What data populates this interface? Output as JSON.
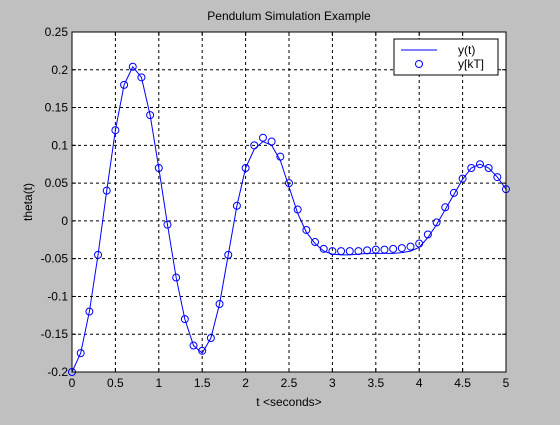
{
  "window": {
    "background": "#c0c0c0"
  },
  "chart_data": {
    "type": "line",
    "title": "Pendulum Simulation Example",
    "xlabel": "t <seconds>",
    "ylabel": "theta(t)",
    "xlim": [
      0,
      5
    ],
    "ylim": [
      -0.2,
      0.25
    ],
    "xticks": [
      0,
      0.5,
      1,
      1.5,
      2,
      2.5,
      3,
      3.5,
      4,
      4.5,
      5
    ],
    "xtick_labels": [
      "0",
      "0.5",
      "1",
      "1.5",
      "2",
      "2.5",
      "3",
      "3.5",
      "4",
      "4.5",
      "5"
    ],
    "yticks": [
      -0.2,
      -0.15,
      -0.1,
      -0.05,
      0,
      0.05,
      0.1,
      0.15,
      0.2,
      0.25
    ],
    "ytick_labels": [
      "-0.2",
      "-0.15",
      "-0.1",
      "-0.05",
      "0",
      "0.05",
      "0.1",
      "0.15",
      "0.2",
      "0.25"
    ],
    "grid": true,
    "legend_position": "top-right",
    "series": [
      {
        "name": "y(t)",
        "style": "line",
        "color": "#0000ff",
        "x": [
          0,
          0.1,
          0.2,
          0.3,
          0.4,
          0.5,
          0.6,
          0.7,
          0.8,
          0.9,
          1.0,
          1.1,
          1.2,
          1.3,
          1.4,
          1.5,
          1.6,
          1.7,
          1.8,
          1.9,
          2.0,
          2.1,
          2.2,
          2.3,
          2.4,
          2.5,
          2.6,
          2.7,
          2.8,
          2.9,
          3.0,
          3.1,
          3.2,
          3.3,
          3.4,
          3.5,
          3.6,
          3.7,
          3.8,
          3.9,
          4.0,
          4.1,
          4.2,
          4.3,
          4.4,
          4.5,
          4.6,
          4.7,
          4.8,
          4.9,
          5.0
        ],
        "y": [
          -0.2,
          -0.175,
          -0.12,
          -0.045,
          0.04,
          0.12,
          0.18,
          0.204,
          0.19,
          0.14,
          0.07,
          -0.005,
          -0.075,
          -0.13,
          -0.165,
          -0.175,
          -0.155,
          -0.11,
          -0.045,
          0.02,
          0.07,
          0.095,
          0.105,
          0.1,
          0.08,
          0.045,
          0.01,
          -0.015,
          -0.03,
          -0.04,
          -0.044,
          -0.045,
          -0.045,
          -0.044,
          -0.043,
          -0.043,
          -0.043,
          -0.043,
          -0.042,
          -0.04,
          -0.035,
          -0.022,
          -0.005,
          0.015,
          0.035,
          0.055,
          0.07,
          0.075,
          0.07,
          0.058,
          0.042
        ]
      },
      {
        "name": "y[kT]",
        "style": "marker",
        "marker": "circle",
        "color": "#0000ff",
        "x": [
          0,
          0.1,
          0.2,
          0.3,
          0.4,
          0.5,
          0.6,
          0.7,
          0.8,
          0.9,
          1.0,
          1.1,
          1.2,
          1.3,
          1.4,
          1.5,
          1.6,
          1.7,
          1.8,
          1.9,
          2.0,
          2.1,
          2.2,
          2.3,
          2.4,
          2.5,
          2.6,
          2.7,
          2.8,
          2.9,
          3.0,
          3.1,
          3.2,
          3.3,
          3.4,
          3.5,
          3.6,
          3.7,
          3.8,
          3.9,
          4.0,
          4.1,
          4.2,
          4.3,
          4.4,
          4.5,
          4.6,
          4.7,
          4.8,
          4.9,
          5.0
        ],
        "y": [
          -0.2,
          -0.175,
          -0.12,
          -0.045,
          0.04,
          0.12,
          0.18,
          0.204,
          0.19,
          0.14,
          0.07,
          -0.005,
          -0.075,
          -0.13,
          -0.165,
          -0.172,
          -0.155,
          -0.11,
          -0.045,
          0.02,
          0.07,
          0.1,
          0.11,
          0.105,
          0.085,
          0.05,
          0.015,
          -0.012,
          -0.028,
          -0.037,
          -0.04,
          -0.04,
          -0.04,
          -0.04,
          -0.039,
          -0.038,
          -0.038,
          -0.037,
          -0.036,
          -0.034,
          -0.03,
          -0.018,
          -0.002,
          0.018,
          0.037,
          0.056,
          0.07,
          0.075,
          0.07,
          0.058,
          0.042
        ]
      }
    ]
  }
}
